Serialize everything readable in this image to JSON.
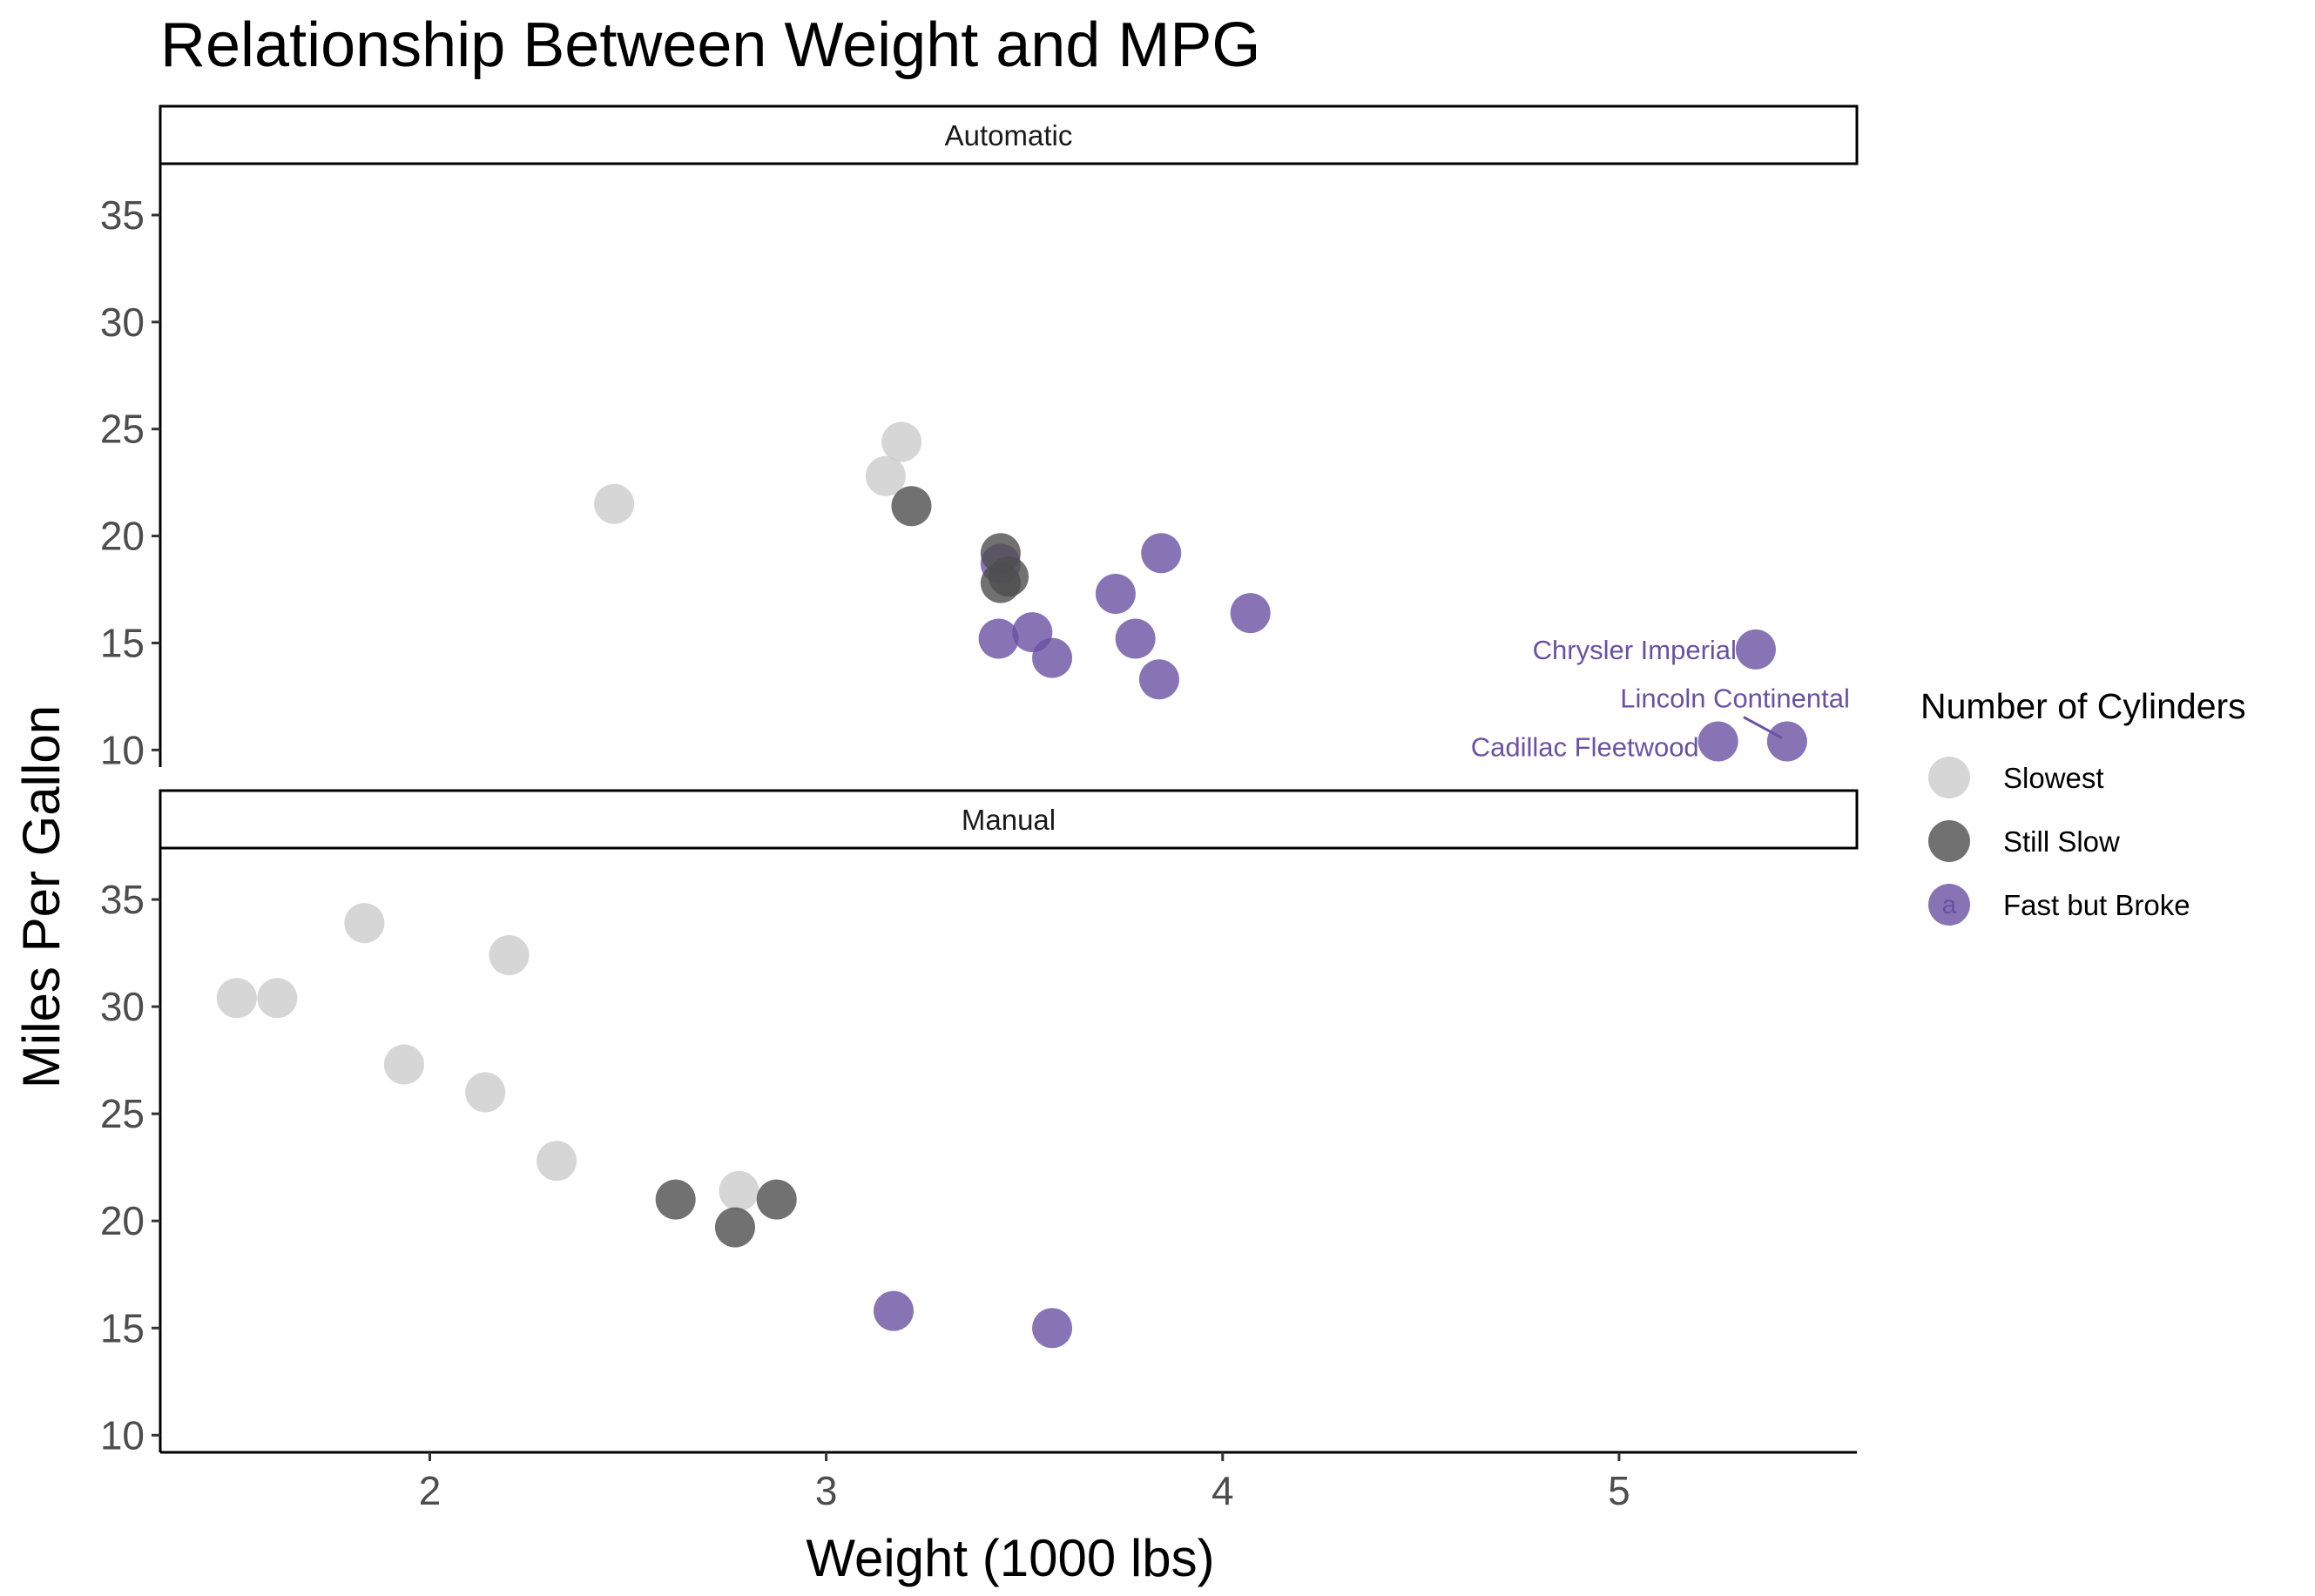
{
  "chart_data": {
    "type": "scatter",
    "title": "Relationship Between Weight and MPG",
    "xlabel": "Weight (1000 lbs)",
    "ylabel": "Miles Per Gallon",
    "xlim": [
      1.32,
      5.6
    ],
    "ylim": [
      9.2,
      37.4
    ],
    "x_ticks": [
      2,
      3,
      4,
      5
    ],
    "y_ticks": [
      10,
      15,
      20,
      25,
      30,
      35
    ],
    "x_tick_labels": [
      "2",
      "3",
      "4",
      "5"
    ],
    "y_tick_labels": [
      "10",
      "15",
      "20",
      "25",
      "30",
      "35"
    ],
    "grid": false,
    "legend": {
      "title": "Number of Cylinders",
      "position": "right",
      "key_text": "a",
      "entries": [
        {
          "label": "Slowest",
          "color": "#cccccc"
        },
        {
          "label": "Still Slow",
          "color": "#4d4d4d"
        },
        {
          "label": "Fast but Broke",
          "color": "#6a51a3"
        }
      ]
    },
    "colors": {
      "Slowest": "#cccccc",
      "Still Slow": "#4d4d4d",
      "Fast but Broke": "#6a51a3"
    },
    "facets": [
      {
        "label": "Automatic",
        "points": [
          {
            "x": 2.465,
            "y": 21.5,
            "group": "Slowest"
          },
          {
            "x": 3.19,
            "y": 24.4,
            "group": "Slowest"
          },
          {
            "x": 3.15,
            "y": 22.8,
            "group": "Slowest"
          },
          {
            "x": 3.215,
            "y": 21.4,
            "group": "Still Slow"
          },
          {
            "x": 3.44,
            "y": 18.7,
            "group": "Fast but Broke"
          },
          {
            "x": 3.44,
            "y": 19.2,
            "group": "Still Slow"
          },
          {
            "x": 3.44,
            "y": 17.8,
            "group": "Still Slow"
          },
          {
            "x": 3.46,
            "y": 18.1,
            "group": "Still Slow"
          },
          {
            "x": 3.57,
            "y": 14.3,
            "group": "Fast but Broke"
          },
          {
            "x": 3.73,
            "y": 17.3,
            "group": "Fast but Broke"
          },
          {
            "x": 3.78,
            "y": 15.2,
            "group": "Fast but Broke"
          },
          {
            "x": 4.07,
            "y": 16.4,
            "group": "Fast but Broke"
          },
          {
            "x": 3.52,
            "y": 15.5,
            "group": "Fast but Broke"
          },
          {
            "x": 3.435,
            "y": 15.2,
            "group": "Fast but Broke"
          },
          {
            "x": 3.84,
            "y": 13.3,
            "group": "Fast but Broke"
          },
          {
            "x": 3.845,
            "y": 19.2,
            "group": "Fast but Broke"
          },
          {
            "x": 5.25,
            "y": 10.4,
            "group": "Fast but Broke"
          },
          {
            "x": 5.424,
            "y": 10.4,
            "group": "Fast but Broke"
          },
          {
            "x": 5.345,
            "y": 14.7,
            "group": "Fast but Broke"
          }
        ],
        "annotations": [
          {
            "text": "Chrysler Imperial",
            "x": 5.345,
            "y": 14.7
          },
          {
            "text": "Lincoln Continental",
            "x": 5.424,
            "y": 10.4
          },
          {
            "text": "Cadillac Fleetwood",
            "x": 5.25,
            "y": 10.4
          }
        ]
      },
      {
        "label": "Manual",
        "points": [
          {
            "x": 2.32,
            "y": 22.8,
            "group": "Slowest"
          },
          {
            "x": 2.2,
            "y": 32.4,
            "group": "Slowest"
          },
          {
            "x": 1.615,
            "y": 30.4,
            "group": "Slowest"
          },
          {
            "x": 1.835,
            "y": 33.9,
            "group": "Slowest"
          },
          {
            "x": 1.935,
            "y": 27.3,
            "group": "Slowest"
          },
          {
            "x": 2.14,
            "y": 26.0,
            "group": "Slowest"
          },
          {
            "x": 1.513,
            "y": 30.4,
            "group": "Slowest"
          },
          {
            "x": 2.78,
            "y": 21.4,
            "group": "Slowest"
          },
          {
            "x": 2.62,
            "y": 21.0,
            "group": "Still Slow"
          },
          {
            "x": 2.875,
            "y": 21.0,
            "group": "Still Slow"
          },
          {
            "x": 2.77,
            "y": 19.7,
            "group": "Still Slow"
          },
          {
            "x": 3.17,
            "y": 15.8,
            "group": "Fast but Broke"
          },
          {
            "x": 3.57,
            "y": 15.0,
            "group": "Fast but Broke"
          }
        ],
        "annotations": []
      }
    ]
  }
}
